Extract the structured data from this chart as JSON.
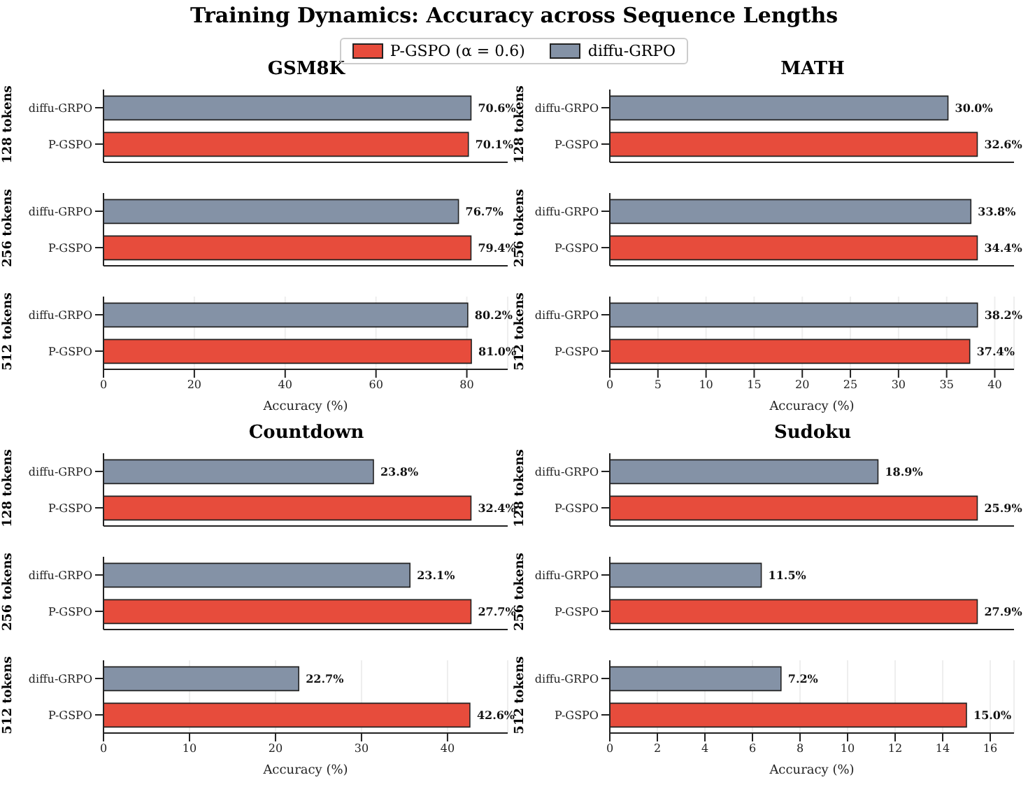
{
  "chart_data": [
    {
      "type": "other",
      "title": "Training Dynamics: Accuracy across Sequence Lengths"
    },
    {
      "type": "bar",
      "orientation": "horizontal",
      "stacked": true,
      "title": "GSM8K",
      "ylabel": "128 tokens",
      "legend": "top",
      "categories": [
        "diffu-GRPO",
        "P-GSPO"
      ],
      "tick_labels": "y",
      "series": [
        {
          "name": "P-GSPO (α = 0.6)",
          "color": "#e74c3c",
          "values": [
            null,
            70.1
          ],
          "value_labels": [
            null,
            "70.1%"
          ]
        },
        {
          "name": "diffu-GRPO",
          "color": "#8492a6",
          "values": [
            70.6,
            null
          ],
          "value_labels": [
            "70.6%",
            null
          ]
        }
      ]
    },
    {
      "type": "bar",
      "orientation": "horizontal",
      "stacked": true,
      "ylabel": "256 tokens",
      "categories": [
        "diffu-GRPO",
        "P-GSPO"
      ],
      "tick_labels": "y",
      "series": [
        {
          "color": "#e74c3c",
          "values": [
            null,
            79.4
          ],
          "value_labels": [
            null,
            "79.4%"
          ]
        },
        {
          "color": "#8492a6",
          "values": [
            76.7,
            null
          ],
          "value_labels": [
            "76.7%",
            null
          ]
        }
      ]
    },
    {
      "type": "bar",
      "orientation": "horizontal",
      "stacked": true,
      "ylabel": "512 tokens",
      "xlabel": "Accuracy (%)",
      "xlim": [
        0,
        89
      ],
      "xticks": [
        0,
        20,
        40,
        60,
        80
      ],
      "grid": "x",
      "categories": [
        "diffu-GRPO",
        "P-GSPO"
      ],
      "series": [
        {
          "color": "#e74c3c",
          "values": [
            null,
            81.0
          ],
          "value_labels": [
            null,
            "81.0%"
          ]
        },
        {
          "color": "#8492a6",
          "values": [
            80.2,
            null
          ],
          "value_labels": [
            "80.2%",
            null
          ]
        }
      ]
    },
    {
      "type": "bar",
      "orientation": "horizontal",
      "stacked": true,
      "title": "MATH",
      "ylabel": "128 tokens",
      "categories": [
        "diffu-GRPO",
        "P-GSPO"
      ],
      "tick_labels": "y",
      "series": [
        {
          "color": "#e74c3c",
          "values": [
            null,
            32.6
          ],
          "value_labels": [
            null,
            "32.6%"
          ]
        },
        {
          "color": "#8492a6",
          "values": [
            30.0,
            null
          ],
          "value_labels": [
            "30.0%",
            null
          ]
        }
      ]
    },
    {
      "type": "bar",
      "orientation": "horizontal",
      "stacked": true,
      "ylabel": "256 tokens",
      "categories": [
        "diffu-GRPO",
        "P-GSPO"
      ],
      "tick_labels": "y",
      "series": [
        {
          "color": "#e74c3c",
          "values": [
            null,
            34.4
          ],
          "value_labels": [
            null,
            "34.4%"
          ]
        },
        {
          "color": "#8492a6",
          "values": [
            33.8,
            null
          ],
          "value_labels": [
            "33.8%",
            null
          ]
        }
      ]
    },
    {
      "type": "bar",
      "orientation": "horizontal",
      "stacked": true,
      "ylabel": "512 tokens",
      "xlabel": "Accuracy (%)",
      "xlim": [
        0,
        42
      ],
      "xticks": [
        0,
        5,
        10,
        15,
        20,
        25,
        30,
        35,
        40
      ],
      "grid": "x",
      "categories": [
        "diffu-GRPO",
        "P-GSPO"
      ],
      "series": [
        {
          "color": "#e74c3c",
          "values": [
            null,
            37.4
          ],
          "value_labels": [
            null,
            "37.4%"
          ]
        },
        {
          "color": "#8492a6",
          "values": [
            38.2,
            null
          ],
          "value_labels": [
            "38.2%",
            null
          ]
        }
      ]
    },
    {
      "type": "bar",
      "orientation": "horizontal",
      "stacked": true,
      "title": "Countdown",
      "ylabel": "128 tokens",
      "categories": [
        "diffu-GRPO",
        "P-GSPO"
      ],
      "tick_labels": "y",
      "series": [
        {
          "color": "#e74c3c",
          "values": [
            null,
            32.4
          ],
          "value_labels": [
            null,
            "32.4%"
          ]
        },
        {
          "color": "#8492a6",
          "values": [
            23.8,
            null
          ],
          "value_labels": [
            "23.8%",
            null
          ]
        }
      ]
    },
    {
      "type": "bar",
      "orientation": "horizontal",
      "stacked": true,
      "ylabel": "256 tokens",
      "categories": [
        "diffu-GRPO",
        "P-GSPO"
      ],
      "tick_labels": "y",
      "series": [
        {
          "color": "#e74c3c",
          "values": [
            null,
            27.7
          ],
          "value_labels": [
            null,
            "27.7%"
          ]
        },
        {
          "color": "#8492a6",
          "values": [
            23.1,
            null
          ],
          "value_labels": [
            "23.1%",
            null
          ]
        }
      ]
    },
    {
      "type": "bar",
      "orientation": "horizontal",
      "stacked": true,
      "ylabel": "512 tokens",
      "xlabel": "Accuracy (%)",
      "xlim": [
        0,
        47
      ],
      "xticks": [
        0,
        10,
        20,
        30,
        40
      ],
      "grid": "x",
      "categories": [
        "diffu-GRPO",
        "P-GSPO"
      ],
      "series": [
        {
          "color": "#e74c3c",
          "values": [
            null,
            42.6
          ],
          "value_labels": [
            null,
            "42.6%"
          ]
        },
        {
          "color": "#8492a6",
          "values": [
            22.7,
            null
          ],
          "value_labels": [
            "22.7%",
            null
          ]
        }
      ]
    },
    {
      "type": "bar",
      "orientation": "horizontal",
      "stacked": true,
      "title": "Sudoku",
      "ylabel": "128 tokens",
      "categories": [
        "diffu-GRPO",
        "P-GSPO"
      ],
      "tick_labels": "y",
      "series": [
        {
          "color": "#e74c3c",
          "values": [
            null,
            25.9
          ],
          "value_labels": [
            null,
            "25.9%"
          ]
        },
        {
          "color": "#8492a6",
          "values": [
            18.9,
            null
          ],
          "value_labels": [
            "18.9%",
            null
          ]
        }
      ]
    },
    {
      "type": "bar",
      "orientation": "horizontal",
      "stacked": true,
      "ylabel": "256 tokens",
      "categories": [
        "diffu-GRPO",
        "P-GSPO"
      ],
      "tick_labels": "y",
      "series": [
        {
          "color": "#e74c3c",
          "values": [
            null,
            27.9
          ],
          "value_labels": [
            null,
            "27.9%"
          ]
        },
        {
          "color": "#8492a6",
          "values": [
            11.5,
            null
          ],
          "value_labels": [
            "11.5%",
            null
          ]
        }
      ]
    },
    {
      "type": "bar",
      "orientation": "horizontal",
      "stacked": true,
      "ylabel": "512 tokens",
      "xlabel": "Accuracy (%)",
      "xlim": [
        0,
        17
      ],
      "xticks": [
        0,
        2,
        4,
        6,
        8,
        10,
        12,
        14,
        16
      ],
      "grid": "x",
      "categories": [
        "diffu-GRPO",
        "P-GSPO"
      ],
      "series": [
        {
          "color": "#e74c3c",
          "values": [
            null,
            15.0
          ],
          "value_labels": [
            null,
            "15.0%"
          ]
        },
        {
          "color": "#8492a6",
          "values": [
            7.2,
            null
          ],
          "value_labels": [
            "7.2%",
            null
          ]
        }
      ]
    }
  ]
}
